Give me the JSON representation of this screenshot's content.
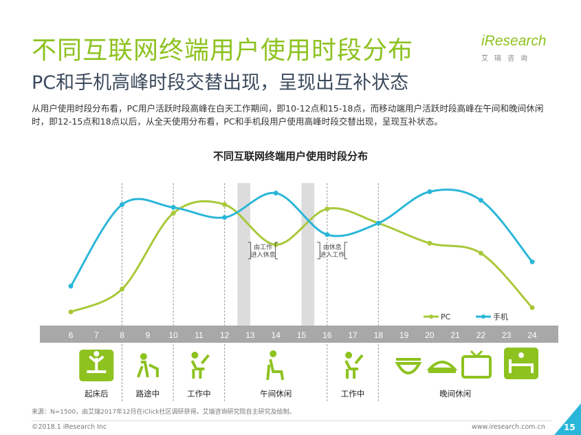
{
  "header": {
    "title": "不同互联网终端用户使用时段分布",
    "subtitle": "PC和手机高峰时段交替出现，呈现出互补状态",
    "description": "从用户使用时段分布看，PC用户活跃时段高峰在白天工作期间，即10-12点和15-18点，而移动端用户活跃时段高峰在午间和晚间休闲时，即12-15点和18点以后，从全天使用分布看，PC和手机段用户使用高峰时段交替出现，呈现互补状态。"
  },
  "logo": {
    "main": "iResearch",
    "sub": "艾瑞咨询"
  },
  "chart_data": {
    "type": "line",
    "title": "不同互联网终端用户使用时段分布",
    "x": [
      "6",
      "7",
      "8",
      "9",
      "10",
      "11",
      "12",
      "13",
      "14",
      "15",
      "16",
      "17",
      "18",
      "19",
      "20",
      "21",
      "22",
      "23",
      "24"
    ],
    "series": [
      {
        "name": "PC",
        "color": "#a8c83a",
        "points": [
          [
            6,
            0.1
          ],
          [
            8,
            0.26
          ],
          [
            10,
            0.79
          ],
          [
            12,
            0.85
          ],
          [
            14,
            0.57
          ],
          [
            16,
            0.82
          ],
          [
            18,
            0.72
          ],
          [
            20,
            0.58
          ],
          [
            22,
            0.51
          ],
          [
            24,
            0.13
          ]
        ]
      },
      {
        "name": "手机",
        "color": "#29b6d8",
        "points": [
          [
            6,
            0.28
          ],
          [
            8,
            0.85
          ],
          [
            10,
            0.83
          ],
          [
            12,
            0.76
          ],
          [
            14,
            0.93
          ],
          [
            16,
            0.64
          ],
          [
            18,
            0.72
          ],
          [
            20,
            0.94
          ],
          [
            22,
            0.88
          ],
          [
            24,
            0.45
          ]
        ]
      }
    ],
    "ylim": [
      0,
      1
    ],
    "highlight_bands": [
      [
        12.5,
        13
      ],
      [
        15,
        15.5
      ]
    ],
    "dividers": [
      8,
      10,
      12,
      16,
      18
    ],
    "annotations": [
      {
        "text_line1": "由工作",
        "text_line2": "进入休息",
        "x": 13.5
      },
      {
        "text_line1": "由休息",
        "text_line2": "进入工作",
        "x": 16.2
      }
    ],
    "legend_position": "bottom-right",
    "categories": [
      {
        "label": "起床后",
        "icon": "wake-up-icon",
        "x": 7
      },
      {
        "label": "路途中",
        "icon": "commute-icon",
        "x": 9
      },
      {
        "label": "工作中",
        "icon": "desk-work-icon",
        "x": 11
      },
      {
        "label": "午间休闲",
        "icon": "sofa-relax-icon",
        "x": 14
      },
      {
        "label": "工作中",
        "icon": "desk-work-icon",
        "x": 17
      },
      {
        "label": "晚间休闲",
        "icon": "dinner-tv-bed-icon",
        "x": 21
      }
    ],
    "evening_icons": [
      "bowl-icon",
      "dinner-plate-icon",
      "tv-icon",
      "bed-icon"
    ]
  },
  "footer": {
    "source": "来源：N=1500，由艾瑞2017年12月在iClick社区调研获得。艾瑞咨询研究院自主研究及绘制。",
    "copyright": "©2018.1 iResearch Inc",
    "site": "www.iresearch.com.cn",
    "page": "15"
  },
  "colors": {
    "green": "#8dc21f",
    "blue": "#29b6d8",
    "axis_bar": "#a8a8a8",
    "band": "#dcdcdc"
  }
}
